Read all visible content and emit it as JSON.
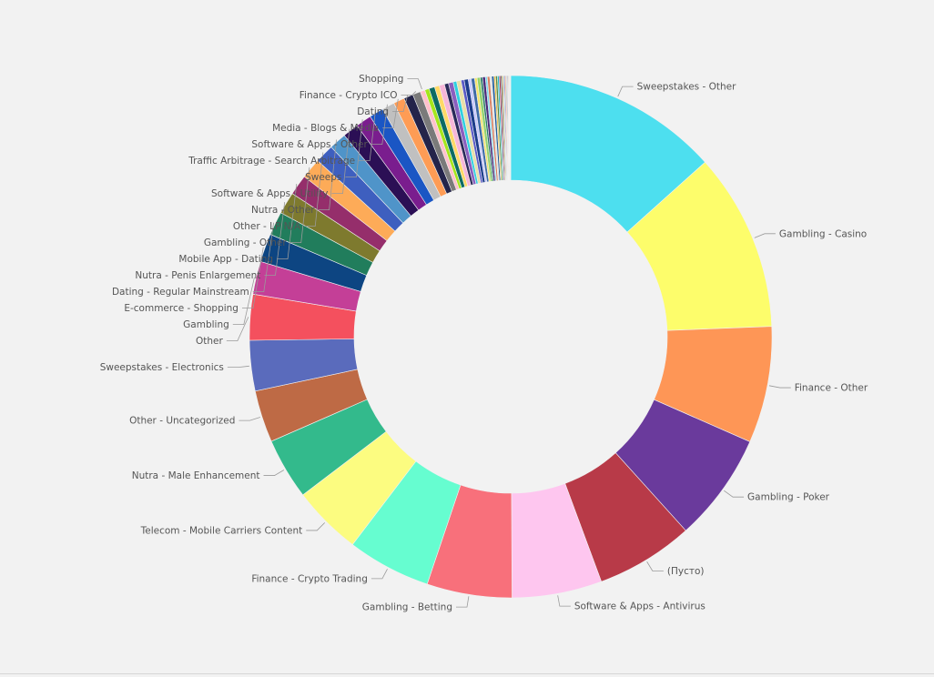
{
  "chart_data": {
    "type": "donut",
    "title": "",
    "legend": "none",
    "categories": [
      "Sweepstakes - Other",
      "Gambling - Casino",
      "Finance - Other",
      "Gambling - Poker",
      "(Пусто)",
      "Software & Apps - Antivirus",
      "Gambling - Betting",
      "Finance - Crypto Trading",
      "Telecom - Mobile Carriers Content",
      "Nutra - Male Enhancement",
      "Other - Uncategorized",
      "Sweepstakes - Electronics",
      "Other",
      "Gambling",
      "E-commerce - Shopping",
      "Dating - Regular Mainstream",
      "Nutra - Penis Enlargement",
      "Mobile App - Dating",
      "Gambling - Other",
      "Other - LP N/A",
      "Nutra - Other",
      "Software & Apps - Utility",
      "Sweeps",
      "Traffic Arbitrage - Search Arbitrage",
      "Software & Apps - Other",
      "Media - Blogs & Media",
      "Dating",
      "Finance - Crypto ICO",
      "Shopping"
    ],
    "values": [
      13.7,
      11.3,
      7.4,
      6.9,
      6.2,
      5.7,
      5.4,
      5.3,
      4.4,
      3.9,
      3.3,
      3.2,
      2.9,
      2.1,
      1.8,
      1.5,
      1.4,
      1.3,
      1.3,
      1.2,
      1.1,
      1.0,
      1.0,
      0.9,
      0.8,
      0.7,
      0.6,
      0.5,
      0.3
    ],
    "colors": [
      "#4ddfef",
      "#fdfd6b",
      "#fe9656",
      "#6a3a9c",
      "#b83a48",
      "#fec6ef",
      "#f8707b",
      "#66fdd0",
      "#fcfc80",
      "#33ba8c",
      "#be6a45",
      "#5a6bbc",
      "#f4505e",
      "#c43f97",
      "#0d4582",
      "#217d5c",
      "#7e7a2e",
      "#952e6b",
      "#fdab58",
      "#3e5fbf",
      "#4f94c9",
      "#2b0f55",
      "#7a1d8e",
      "#1a56c4",
      "#c0c0c0",
      "#fe9c55",
      "#24244a",
      "#7a7a7a",
      "#ffc0cb"
    ],
    "others_values": [
      0.28,
      0.36,
      0.3,
      0.34,
      0.26,
      0.3,
      0.22,
      0.28,
      0.2,
      0.26,
      0.18,
      0.22,
      0.16,
      0.2,
      0.14,
      0.18,
      0.12,
      0.16,
      0.12,
      0.14,
      0.1,
      0.12,
      0.1,
      0.1,
      0.08,
      0.08,
      0.07,
      0.06,
      0.06,
      0.05,
      0.05,
      0.04,
      0.04,
      0.04,
      0.03,
      0.03
    ],
    "others_colors": [
      "#a5e61c",
      "#0b6b63",
      "#ffd966",
      "#f6b6d8",
      "#2a2a5a",
      "#8a5fbf",
      "#2fd0e0",
      "#e8e0a8",
      "#5a5ac6",
      "#1c3c8c",
      "#c8c8ff",
      "#3e6aa8",
      "#f7e36a",
      "#90d36a",
      "#2a7a6a",
      "#4b2b7a",
      "#7ad7ef",
      "#d98060",
      "#e0e0e0",
      "#1f5a9a",
      "#f0c040",
      "#5a8a3a",
      "#22bbcc",
      "#a83a5a",
      "#3a3a3a",
      "#c0a040",
      "#8fd0ff",
      "#6a2a6a",
      "#ff9a6a",
      "#40a080",
      "#505090",
      "#e06060",
      "#90c030",
      "#305070",
      "#c08080",
      "#404040"
    ]
  }
}
